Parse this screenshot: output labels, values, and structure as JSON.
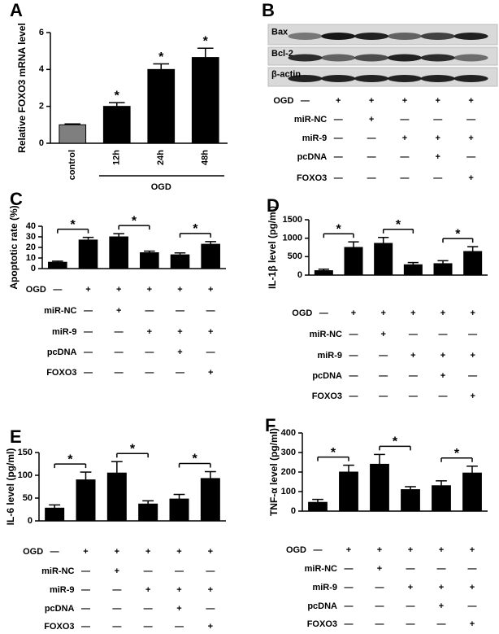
{
  "chart_data": [
    {
      "panel": "A",
      "type": "bar",
      "ylabel": "Relative FOXO3 mRNA level",
      "categories": [
        "control",
        "12h",
        "24h",
        "48h"
      ],
      "values": [
        1.0,
        2.0,
        4.0,
        4.65
      ],
      "errors": [
        0.05,
        0.2,
        0.3,
        0.5
      ],
      "colors": [
        "#7f7f7f",
        "#000000",
        "#000000",
        "#000000"
      ],
      "annotations": [
        null,
        "*",
        "*",
        "*"
      ],
      "group_label": "OGD",
      "ylim": [
        0,
        6
      ],
      "yticks": [
        0,
        2,
        4,
        6
      ]
    },
    {
      "panel": "B",
      "type": "blot",
      "bands": [
        "Bax",
        "Bcl-2",
        "β-actin"
      ],
      "conditions": [
        {
          "name": "OGD",
          "signs": [
            "—",
            "+",
            "+",
            "+",
            "+",
            "+"
          ]
        },
        {
          "name": "miR-NC",
          "signs": [
            null,
            "—",
            "+",
            "—",
            "—",
            "—"
          ]
        },
        {
          "name": "miR-9",
          "signs": [
            null,
            "—",
            "—",
            "+",
            "+",
            "+"
          ]
        },
        {
          "name": "pcDNA",
          "signs": [
            null,
            "—",
            "—",
            "—",
            "+",
            "—"
          ]
        },
        {
          "name": "FOXO3",
          "signs": [
            null,
            "—",
            "—",
            "—",
            "—",
            "+"
          ]
        }
      ]
    },
    {
      "panel": "C",
      "type": "bar",
      "ylabel": "Apoptotic rate (%)",
      "values": [
        6,
        27,
        30,
        15,
        13,
        23
      ],
      "errors": [
        1,
        2.5,
        3,
        1.5,
        1.8,
        2.5
      ],
      "color": "#000000",
      "significance": [
        "*",
        "*",
        "*"
      ],
      "ylim": [
        0,
        40
      ],
      "yticks": [
        0,
        10,
        20,
        30,
        40
      ],
      "conditions": [
        {
          "name": "OGD",
          "signs": [
            "—",
            "+",
            "+",
            "+",
            "+",
            "+"
          ]
        },
        {
          "name": "miR-NC",
          "signs": [
            null,
            "—",
            "+",
            "—",
            "—",
            "—"
          ]
        },
        {
          "name": "miR-9",
          "signs": [
            null,
            "—",
            "—",
            "+",
            "+",
            "+"
          ]
        },
        {
          "name": "pcDNA",
          "signs": [
            null,
            "—",
            "—",
            "—",
            "+",
            "—"
          ]
        },
        {
          "name": "FOXO3",
          "signs": [
            null,
            "—",
            "—",
            "—",
            "—",
            "+"
          ]
        }
      ]
    },
    {
      "panel": "D",
      "type": "bar",
      "ylabel": "IL-1β level (pg/ml)",
      "values": [
        120,
        750,
        860,
        280,
        310,
        640
      ],
      "errors": [
        40,
        150,
        160,
        60,
        80,
        130
      ],
      "color": "#000000",
      "significance": [
        "*",
        "*",
        "*"
      ],
      "ylim": [
        0,
        1500
      ],
      "yticks": [
        0,
        500,
        1000,
        1500
      ],
      "conditions": [
        {
          "name": "OGD",
          "signs": [
            "—",
            "+",
            "+",
            "+",
            "+",
            "+"
          ]
        },
        {
          "name": "miR-NC",
          "signs": [
            null,
            "—",
            "+",
            "—",
            "—",
            "—"
          ]
        },
        {
          "name": "miR-9",
          "signs": [
            null,
            "—",
            "—",
            "+",
            "+",
            "+"
          ]
        },
        {
          "name": "pcDNA",
          "signs": [
            null,
            "—",
            "—",
            "—",
            "+",
            "—"
          ]
        },
        {
          "name": "FOXO3",
          "signs": [
            null,
            "—",
            "—",
            "—",
            "—",
            "+"
          ]
        }
      ]
    },
    {
      "panel": "E",
      "type": "bar",
      "ylabel": "IL-6 level (pg/ml)",
      "values": [
        28,
        90,
        105,
        37,
        48,
        93
      ],
      "errors": [
        7,
        17,
        25,
        7,
        10,
        15
      ],
      "color": "#000000",
      "significance": [
        "*",
        "*",
        "*"
      ],
      "ylim": [
        0,
        150
      ],
      "yticks": [
        0,
        50,
        100,
        150
      ],
      "conditions": [
        {
          "name": "OGD",
          "signs": [
            "—",
            "+",
            "+",
            "+",
            "+",
            "+"
          ]
        },
        {
          "name": "miR-NC",
          "signs": [
            null,
            "—",
            "+",
            "—",
            "—",
            "—"
          ]
        },
        {
          "name": "miR-9",
          "signs": [
            null,
            "—",
            "—",
            "+",
            "+",
            "+"
          ]
        },
        {
          "name": "pcDNA",
          "signs": [
            null,
            "—",
            "—",
            "—",
            "+",
            "—"
          ]
        },
        {
          "name": "FOXO3",
          "signs": [
            null,
            "—",
            "—",
            "—",
            "—",
            "+"
          ]
        }
      ]
    },
    {
      "panel": "F",
      "type": "bar",
      "ylabel": "TNF-α level (pg/ml)",
      "values": [
        45,
        200,
        240,
        110,
        130,
        195
      ],
      "errors": [
        15,
        35,
        50,
        15,
        25,
        35
      ],
      "color": "#000000",
      "significance": [
        "*",
        "*",
        "*"
      ],
      "ylim": [
        0,
        400
      ],
      "yticks": [
        0,
        100,
        200,
        300,
        400
      ],
      "conditions": [
        {
          "name": "OGD",
          "signs": [
            "—",
            "+",
            "+",
            "+",
            "+",
            "+"
          ]
        },
        {
          "name": "miR-NC",
          "signs": [
            null,
            "—",
            "+",
            "—",
            "—",
            "—"
          ]
        },
        {
          "name": "miR-9",
          "signs": [
            null,
            "—",
            "—",
            "+",
            "+",
            "+"
          ]
        },
        {
          "name": "pcDNA",
          "signs": [
            null,
            "—",
            "—",
            "—",
            "+",
            "—"
          ]
        },
        {
          "name": "FOXO3",
          "signs": [
            null,
            "—",
            "—",
            "—",
            "—",
            "+"
          ]
        }
      ]
    }
  ]
}
